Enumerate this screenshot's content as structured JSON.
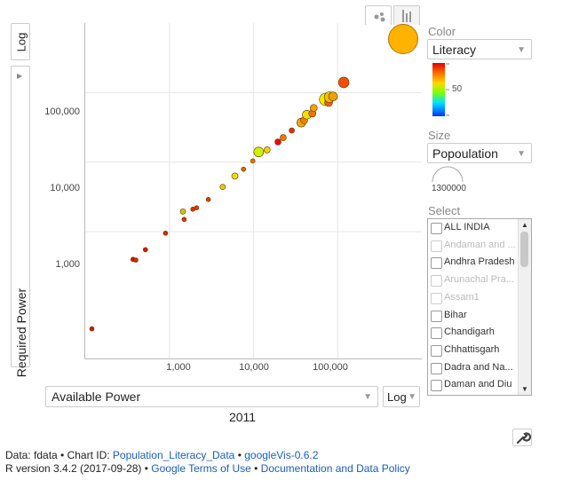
{
  "y_scale": {
    "label": "Log"
  },
  "y_axis": {
    "label": "Required Power",
    "ticks": [
      "100,000",
      "10,000",
      "1,000"
    ]
  },
  "x_axis": {
    "label": "Available Power",
    "ticks": [
      "1,000",
      "10,000",
      "100,000"
    ]
  },
  "x_scale": {
    "label": "Log"
  },
  "time_label": "2011",
  "color": {
    "section": "Color",
    "selected": "Literacy",
    "legend_mid": "50"
  },
  "size": {
    "section": "Size",
    "selected": "Popoulation",
    "legend_value": "1300000"
  },
  "select": {
    "section": "Select",
    "items": [
      {
        "label": "ALL INDIA",
        "dim": false
      },
      {
        "label": "Andaman and ...",
        "dim": true
      },
      {
        "label": "Andhra Pradesh",
        "dim": false
      },
      {
        "label": "Arunachal Pra...",
        "dim": true
      },
      {
        "label": "Assam1",
        "dim": true
      },
      {
        "label": "Bihar",
        "dim": false
      },
      {
        "label": "Chandigarh",
        "dim": false
      },
      {
        "label": "Chhattisgarh",
        "dim": false
      },
      {
        "label": "Dadra and Na...",
        "dim": false
      },
      {
        "label": "Daman and Diu",
        "dim": false
      }
    ]
  },
  "footer": {
    "line1_prefix": "Data: fdata • Chart ID: ",
    "chart_id": "Population_Literacy_Data",
    "sep1": " • ",
    "version": "googleVis-0.6.2",
    "line2_prefix": "R version 3.4.2 (2017-09-28) • ",
    "terms": "Google Terms of Use",
    "sep2": " • ",
    "docs": "Documentation and Data Policy"
  },
  "colors": {
    "highlight_bubble": "#ffb300"
  },
  "chart_data": {
    "type": "scatter",
    "x_log": true,
    "y_log": true,
    "xlim": [
      100,
      1000000
    ],
    "ylim": [
      15,
      1000000
    ],
    "points": [
      {
        "x": 120,
        "y": 40,
        "color": "#e01000",
        "r": 2.5
      },
      {
        "x": 370,
        "y": 400,
        "color": "#e01000",
        "r": 2.5
      },
      {
        "x": 400,
        "y": 390,
        "color": "#e82000",
        "r": 2.5
      },
      {
        "x": 520,
        "y": 550,
        "color": "#e01000",
        "r": 2.5
      },
      {
        "x": 900,
        "y": 950,
        "color": "#e82000",
        "r": 2.5
      },
      {
        "x": 1450,
        "y": 1950,
        "color": "#d8c000",
        "r": 3
      },
      {
        "x": 1500,
        "y": 1500,
        "color": "#e83000",
        "r": 2.5
      },
      {
        "x": 1900,
        "y": 2100,
        "color": "#e03000",
        "r": 2.5
      },
      {
        "x": 2100,
        "y": 2200,
        "color": "#e83800",
        "r": 2.5
      },
      {
        "x": 2900,
        "y": 2900,
        "color": "#e04000",
        "r": 2.5
      },
      {
        "x": 4300,
        "y": 4400,
        "color": "#f0c800",
        "r": 3
      },
      {
        "x": 6000,
        "y": 6300,
        "color": "#f0e000",
        "r": 3.5
      },
      {
        "x": 7600,
        "y": 7900,
        "color": "#e86000",
        "r": 2.5
      },
      {
        "x": 9800,
        "y": 10400,
        "color": "#f07000",
        "r": 2.5
      },
      {
        "x": 11500,
        "y": 14000,
        "color": "#d0f000",
        "r": 5.5
      },
      {
        "x": 14500,
        "y": 15000,
        "color": "#f0d000",
        "r": 3.5
      },
      {
        "x": 19500,
        "y": 19500,
        "color": "#e01000",
        "r": 3.5
      },
      {
        "x": 22500,
        "y": 22500,
        "color": "#f07800",
        "r": 3.5
      },
      {
        "x": 28500,
        "y": 28500,
        "color": "#e83000",
        "r": 3
      },
      {
        "x": 37000,
        "y": 37000,
        "color": "#f0a800",
        "r": 5
      },
      {
        "x": 40000,
        "y": 40000,
        "color": "#f08000",
        "r": 4
      },
      {
        "x": 43000,
        "y": 48000,
        "color": "#f0e000",
        "r": 5
      },
      {
        "x": 50000,
        "y": 50000,
        "color": "#f07000",
        "r": 4
      },
      {
        "x": 52000,
        "y": 60000,
        "color": "#f0a000",
        "r": 4
      },
      {
        "x": 72000,
        "y": 80000,
        "color": "#f0e800",
        "r": 7
      },
      {
        "x": 78000,
        "y": 72000,
        "color": "#f06000",
        "r": 4.5
      },
      {
        "x": 80000,
        "y": 86000,
        "color": "#f0c000",
        "r": 6
      },
      {
        "x": 88000,
        "y": 88000,
        "color": "#f0a000",
        "r": 5
      },
      {
        "x": 118000,
        "y": 140000,
        "color": "#f05000",
        "r": 6
      }
    ]
  }
}
